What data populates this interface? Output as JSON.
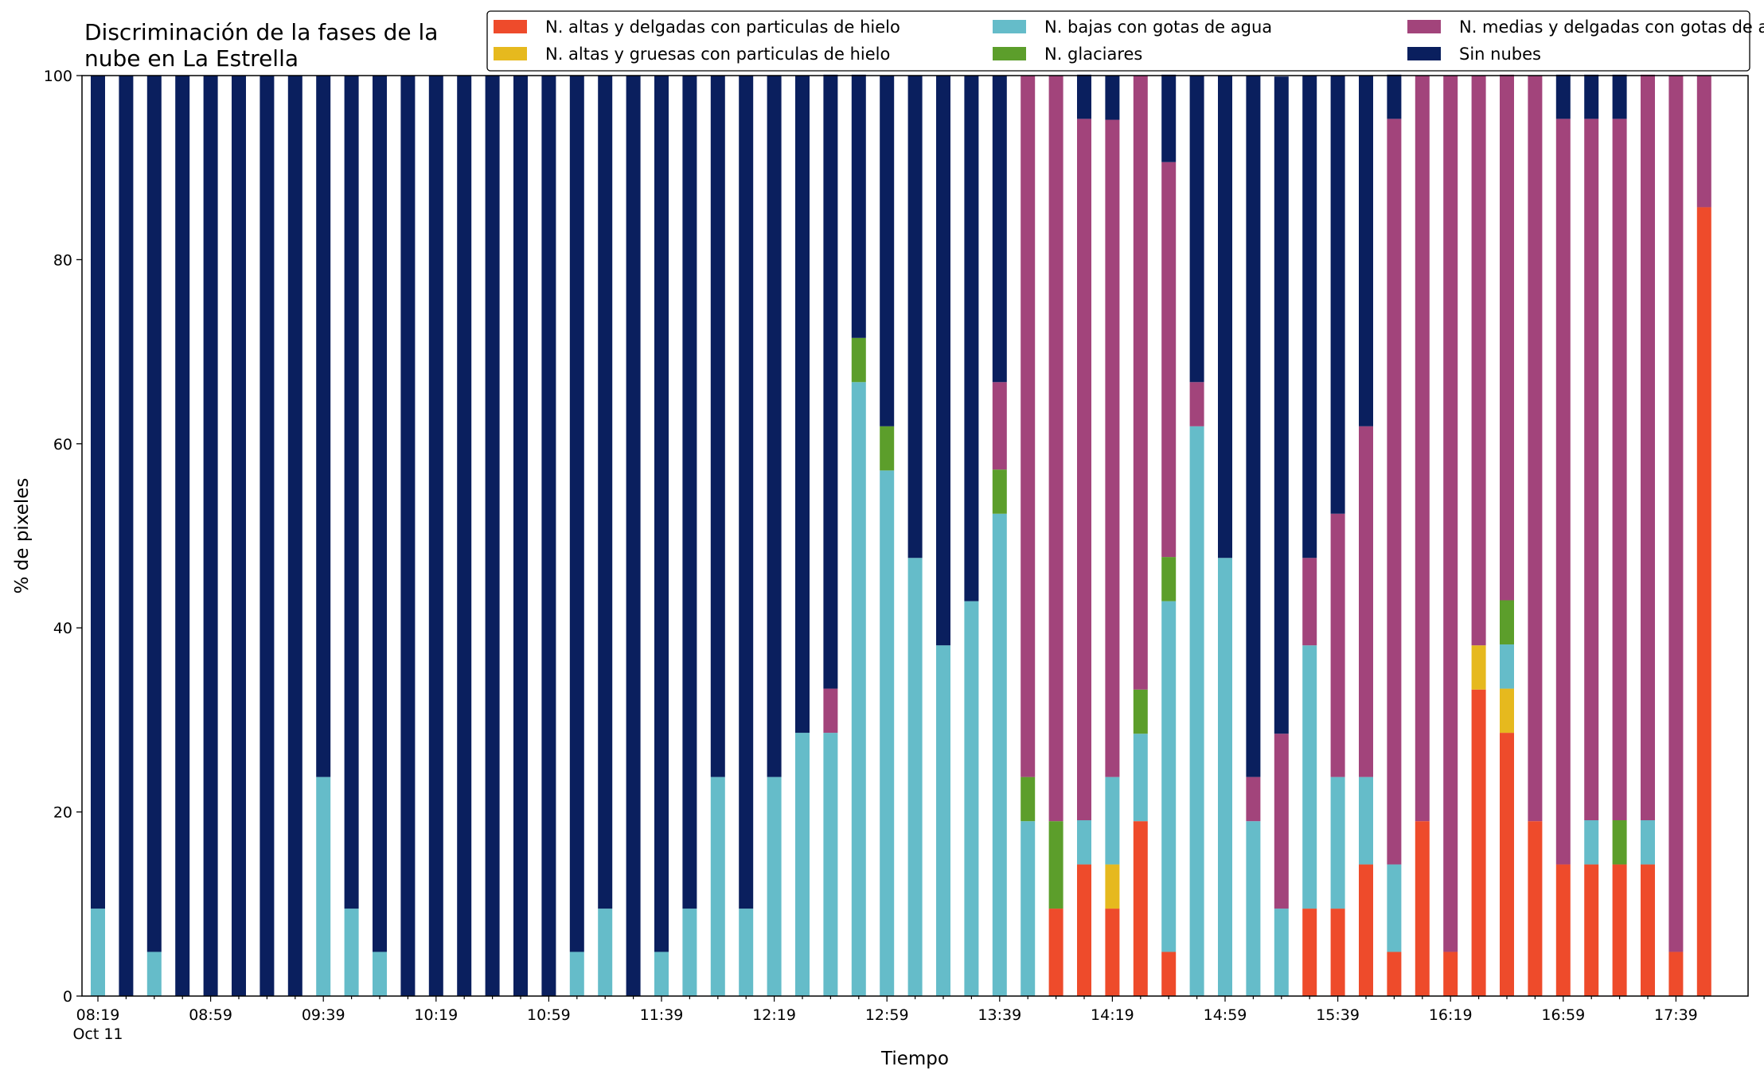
{
  "chart_data": {
    "type": "bar",
    "stacked": true,
    "title_lines": [
      "Discriminación de la fases de la",
      "nube en La Estrella"
    ],
    "xlabel": "Tiempo",
    "ylabel": "% de pixeles",
    "ylim": [
      0,
      100
    ],
    "yticks": [
      0,
      20,
      40,
      60,
      80,
      100
    ],
    "xtick_labels": [
      {
        "index": 0,
        "label": "08:19",
        "sub": "Oct 11"
      },
      {
        "index": 4,
        "label": "08:59"
      },
      {
        "index": 8,
        "label": "09:39"
      },
      {
        "index": 12,
        "label": "10:19"
      },
      {
        "index": 16,
        "label": "10:59"
      },
      {
        "index": 20,
        "label": "11:39"
      },
      {
        "index": 24,
        "label": "12:19"
      },
      {
        "index": 28,
        "label": "12:59"
      },
      {
        "index": 32,
        "label": "13:39"
      },
      {
        "index": 36,
        "label": "14:19"
      },
      {
        "index": 40,
        "label": "14:59"
      },
      {
        "index": 44,
        "label": "15:39"
      },
      {
        "index": 48,
        "label": "16:19"
      },
      {
        "index": 52,
        "label": "16:59"
      },
      {
        "index": 56,
        "label": "17:39"
      }
    ],
    "grid": false,
    "legend_position": "top-right",
    "legend_columns": 3,
    "x": [
      "08:19",
      "08:29",
      "08:39",
      "08:49",
      "08:59",
      "09:09",
      "09:19",
      "09:29",
      "09:39",
      "09:49",
      "09:59",
      "10:09",
      "10:19",
      "10:29",
      "10:39",
      "10:49",
      "10:59",
      "11:09",
      "11:19",
      "11:29",
      "11:39",
      "11:49",
      "11:59",
      "12:09",
      "12:19",
      "12:29",
      "12:39",
      "12:49",
      "12:59",
      "13:09",
      "13:19",
      "13:29",
      "13:39",
      "13:49",
      "13:59",
      "14:09",
      "14:19",
      "14:29",
      "14:39",
      "14:49",
      "14:59",
      "15:09",
      "15:19",
      "15:29",
      "15:39",
      "15:49",
      "15:59",
      "16:09",
      "16:19",
      "16:29",
      "16:39",
      "16:49",
      "16:59",
      "17:09",
      "17:19",
      "17:29",
      "17:39",
      "17:49"
    ],
    "series": [
      {
        "name": "N. altas y delgadas con particulas de hielo",
        "color": "#ee4b2b",
        "values": [
          0,
          0,
          0,
          0,
          0,
          0,
          0,
          0,
          0,
          0,
          0,
          0,
          0,
          0,
          0,
          0,
          0,
          0,
          0,
          0,
          0,
          0,
          0,
          0,
          0,
          0,
          0,
          0,
          0,
          0,
          0,
          0,
          0,
          0,
          9.5,
          14.3,
          9.5,
          19,
          4.8,
          0,
          0,
          0,
          0,
          9.5,
          9.5,
          14.3,
          4.8,
          19,
          4.8,
          33.3,
          28.6,
          19,
          14.3,
          14.3,
          14.3,
          14.3,
          4.8,
          85.7
        ]
      },
      {
        "name": "N. altas y gruesas con particulas de hielo",
        "color": "#e6b91e",
        "values": [
          0,
          0,
          0,
          0,
          0,
          0,
          0,
          0,
          0,
          0,
          0,
          0,
          0,
          0,
          0,
          0,
          0,
          0,
          0,
          0,
          0,
          0,
          0,
          0,
          0,
          0,
          0,
          0,
          0,
          0,
          0,
          0,
          0,
          0,
          0,
          0,
          4.8,
          0,
          0,
          0,
          0,
          0,
          0,
          0,
          0,
          0,
          0,
          0,
          0,
          4.8,
          4.8,
          0,
          0,
          0,
          0,
          0,
          0,
          0
        ]
      },
      {
        "name": "N. bajas con gotas de agua",
        "color": "#65bcc9",
        "values": [
          9.5,
          0,
          4.8,
          0,
          0,
          0,
          0,
          0,
          23.8,
          9.5,
          4.8,
          0,
          0,
          0,
          0,
          0,
          0,
          4.8,
          9.5,
          0,
          4.8,
          9.5,
          23.8,
          9.5,
          23.8,
          28.6,
          28.6,
          66.7,
          57.1,
          47.6,
          38.1,
          42.9,
          52.4,
          19,
          0,
          4.8,
          9.5,
          9.5,
          38.1,
          61.9,
          47.6,
          19,
          9.5,
          28.6,
          14.3,
          9.5,
          9.5,
          0,
          0,
          0,
          4.8,
          0,
          0,
          4.8,
          0,
          4.8,
          0,
          0
        ]
      },
      {
        "name": "N. glaciares",
        "color": "#5c9e2b",
        "values": [
          0,
          0,
          0,
          0,
          0,
          0,
          0,
          0,
          0,
          0,
          0,
          0,
          0,
          0,
          0,
          0,
          0,
          0,
          0,
          0,
          0,
          0,
          0,
          0,
          0,
          0,
          0,
          4.8,
          4.8,
          0,
          0,
          0,
          4.8,
          4.8,
          9.5,
          0,
          0,
          4.8,
          4.8,
          0,
          0,
          0,
          0,
          0,
          0,
          0,
          0,
          0,
          0,
          0,
          4.8,
          0,
          0,
          0,
          4.8,
          0,
          0,
          0
        ]
      },
      {
        "name": "N. medias y delgadas con gotas de agua",
        "color": "#a2447b",
        "values": [
          0,
          0,
          0,
          0,
          0,
          0,
          0,
          0,
          0,
          0,
          0,
          0,
          0,
          0,
          0,
          0,
          0,
          0,
          0,
          0,
          0,
          0,
          0,
          0,
          0,
          0,
          4.8,
          0,
          0,
          0,
          0,
          0,
          9.5,
          76.2,
          81,
          76.2,
          71.4,
          66.7,
          42.9,
          4.8,
          0,
          4.8,
          19,
          9.5,
          28.6,
          38.1,
          81,
          81,
          95.2,
          61.9,
          57.1,
          81,
          81,
          76.2,
          76.2,
          81,
          95.2,
          14.3
        ]
      },
      {
        "name": "Sin nubes",
        "color": "#0a1f5e",
        "values": [
          90.5,
          100,
          95.2,
          100,
          100,
          100,
          100,
          100,
          76.2,
          90.5,
          95.2,
          100,
          100,
          100,
          100,
          100,
          100,
          95.2,
          90.5,
          100,
          95.2,
          90.5,
          76.2,
          90.5,
          76.2,
          71.4,
          66.7,
          28.6,
          38.1,
          52.4,
          61.9,
          57.1,
          33.3,
          0,
          0,
          4.8,
          4.8,
          0,
          9.5,
          33.3,
          52.4,
          76.2,
          71.4,
          52.4,
          47.6,
          38.1,
          4.8,
          0,
          0,
          0,
          0,
          0,
          4.8,
          4.8,
          4.8,
          0,
          0,
          0
        ]
      }
    ]
  }
}
